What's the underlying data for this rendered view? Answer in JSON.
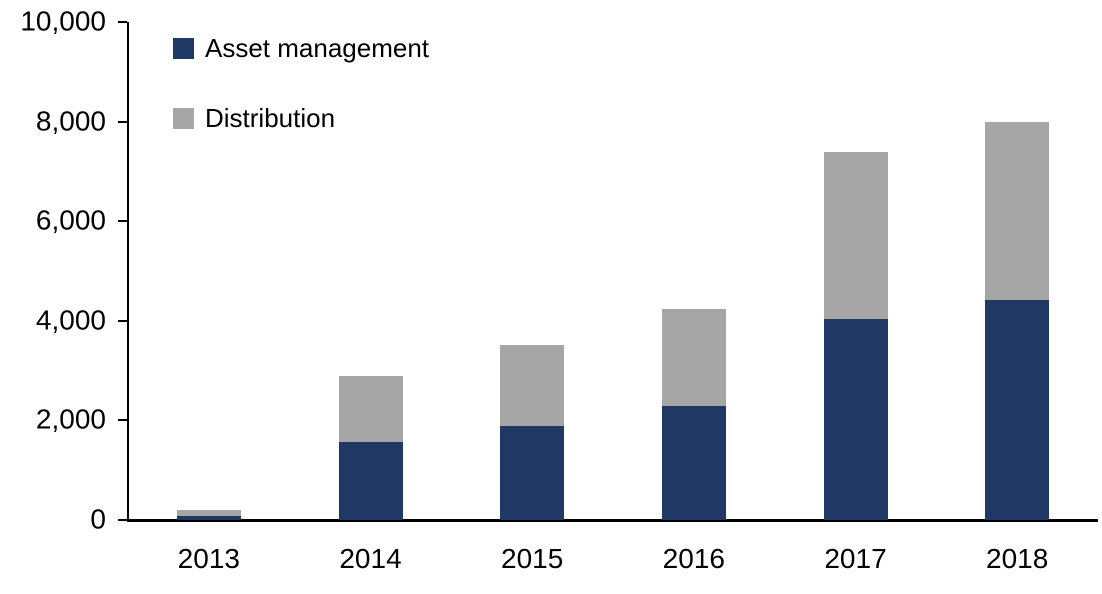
{
  "chart_data": {
    "type": "bar",
    "stacked": true,
    "title": "",
    "xlabel": "",
    "ylabel": "",
    "categories": [
      "2013",
      "2014",
      "2015",
      "2016",
      "2017",
      "2018"
    ],
    "series": [
      {
        "name": "Asset management",
        "color": "#1F3864",
        "values": [
          90,
          1570,
          1890,
          2290,
          4040,
          4420
        ]
      },
      {
        "name": "Distribution",
        "color": "#A6A6A6",
        "values": [
          110,
          1330,
          1620,
          1950,
          3340,
          3580
        ]
      }
    ],
    "totals": [
      200,
      2900,
      3510,
      4240,
      7380,
      8000
    ],
    "ylim": [
      0,
      10000
    ],
    "ytick_interval": 2000,
    "ytick_labels": [
      "0",
      "2,000",
      "4,000",
      "6,000",
      "8,000",
      "10,000"
    ],
    "grid": false,
    "legend_position": "inside-top-left",
    "axis_color": "#000000"
  }
}
